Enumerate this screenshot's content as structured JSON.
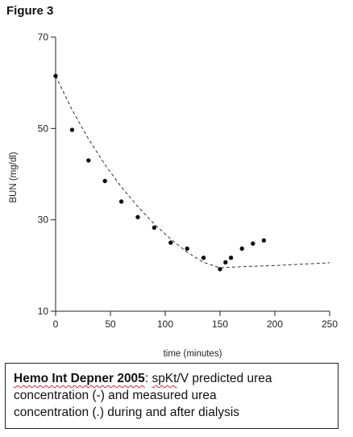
{
  "figure_label": "Figure 3",
  "caption": {
    "lead": "Hemo Int Depner 2005",
    "colon": ": ",
    "term": "spKt",
    "line1_rest": "/V predicted urea",
    "line2": "concentration (-) and measured urea",
    "line3": "concentration (.) during and after dialysis"
  },
  "chart_data": {
    "type": "scatter",
    "xlabel": "time (minutes)",
    "ylabel": "BUN (mg/dl)",
    "xlim": [
      0,
      250
    ],
    "ylim": [
      10,
      70
    ],
    "xticks": [
      0,
      50,
      100,
      150,
      200,
      250
    ],
    "yticks": [
      10,
      30,
      50,
      70
    ],
    "grid": false,
    "legend": "none",
    "series": [
      {
        "kind": "points",
        "x": [
          0,
          15,
          30,
          45,
          60,
          75,
          90,
          105,
          120,
          135,
          150,
          155,
          160,
          170,
          180,
          190
        ],
        "y": [
          61.5,
          49.7,
          43.0,
          38.5,
          34.0,
          30.6,
          28.3,
          25.0,
          23.7,
          21.7,
          19.2,
          20.7,
          21.7,
          23.7,
          24.8,
          25.5
        ]
      },
      {
        "kind": "dashed-line",
        "x": [
          0,
          15,
          30,
          45,
          60,
          75,
          90,
          105,
          120,
          135,
          150,
          175,
          200,
          225,
          250
        ],
        "y": [
          61.5,
          54.1,
          47.7,
          42.1,
          37.2,
          32.9,
          29.1,
          25.8,
          22.9,
          20.7,
          19.5,
          19.8,
          20.0,
          20.3,
          20.6
        ]
      }
    ]
  }
}
